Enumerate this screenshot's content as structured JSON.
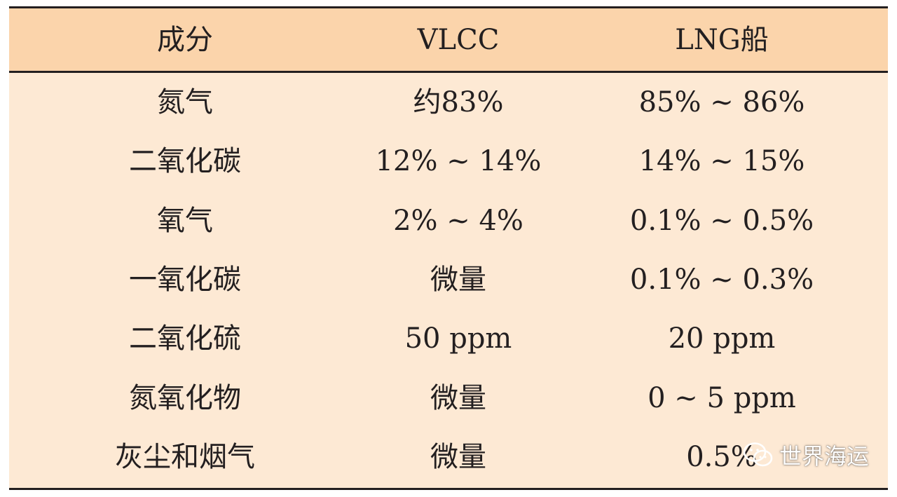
{
  "table": {
    "headers": [
      "成分",
      "VLCC",
      "LNG船"
    ],
    "rows": [
      [
        "氮气",
        "约83%",
        "85% ~ 86%"
      ],
      [
        "二氧化碳",
        "12% ~ 14%",
        "14% ~ 15%"
      ],
      [
        "氧气",
        "2% ~ 4%",
        "0.1% ~ 0.5%"
      ],
      [
        "一氧化碳",
        "微量",
        "0.1% ~ 0.3%"
      ],
      [
        "二氧化硫",
        "50 ppm",
        "20 ppm"
      ],
      [
        "氮氧化物",
        "微量",
        "0 ~ 5 ppm"
      ],
      [
        "灰尘和烟气",
        "微量",
        "0.5%"
      ]
    ]
  },
  "watermark": {
    "text": "世界海运",
    "icon": "wechat-icon"
  },
  "colors": {
    "header_bg": "#fbd4ab",
    "body_bg": "#fde9d4",
    "rule": "#231f20"
  }
}
